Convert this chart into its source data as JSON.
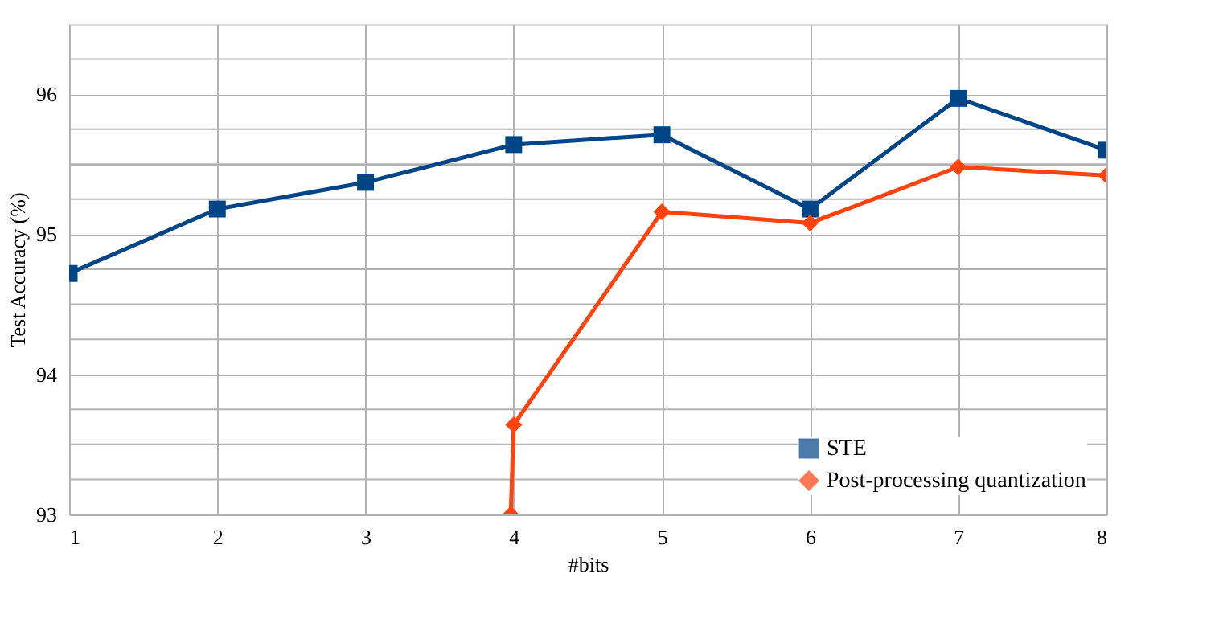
{
  "chart_data": {
    "type": "line",
    "xlabel": "#bits",
    "ylabel": "Test Accuracy (%)",
    "xlim": [
      1,
      8
    ],
    "xticks": [
      1,
      2,
      3,
      4,
      5,
      6,
      7,
      8
    ],
    "ylim": [
      93,
      96.5
    ],
    "yticks": [
      93,
      {
        "value": 93.25,
        "label": null
      },
      {
        "value": 93.5,
        "label": null
      },
      {
        "value": 93.75,
        "label": null
      },
      94,
      {
        "value": 94.25,
        "label": null
      },
      {
        "value": 94.5,
        "label": null
      },
      {
        "value": 94.75,
        "label": null
      },
      95,
      {
        "value": 95.25,
        "label": null
      },
      {
        "value": 95.5,
        "label": null
      },
      {
        "value": 95.75,
        "label": null
      },
      96,
      {
        "value": 96.25,
        "label": null
      }
    ],
    "grid": true,
    "legend": "bottom right",
    "line_style": "solid",
    "series": [
      {
        "name": "STE",
        "color": "#004586",
        "marker": "square",
        "x": [
          1,
          2,
          3,
          4,
          5,
          6,
          7,
          8
        ],
        "values": [
          94.72,
          95.18,
          95.37,
          95.64,
          95.71,
          95.18,
          95.97,
          95.6
        ]
      },
      {
        "name": "Post-processing quantization",
        "color": "#ff420e",
        "marker": "diamond",
        "x": [
          3.98,
          4,
          5,
          6,
          7,
          8
        ],
        "values": [
          93.0,
          93.64,
          95.16,
          95.08,
          95.48,
          95.42
        ]
      }
    ]
  }
}
